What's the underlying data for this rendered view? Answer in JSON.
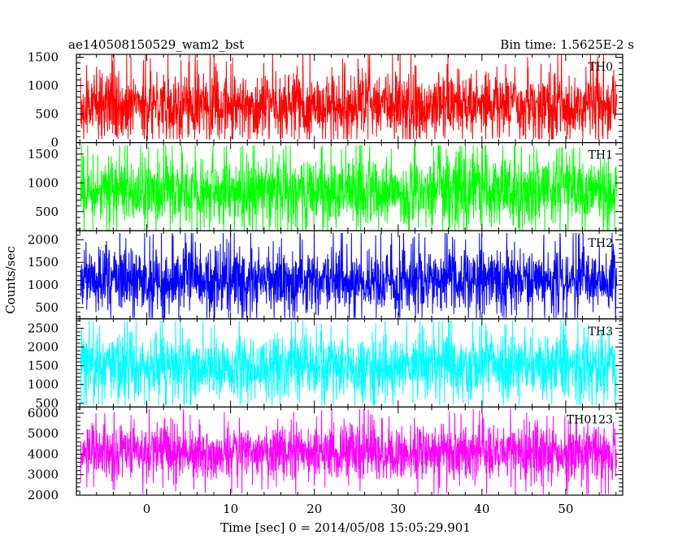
{
  "header": {
    "left_title": "ae140508150529_wam2_bst",
    "right_title": "Bin time: 1.5625E-2 s"
  },
  "chart_data": {
    "type": "line",
    "xlabel": "Time [sec] 0 = 2014/05/08 15:05:29.901",
    "ylabel": "Counts/sec",
    "xlim": [
      -8.4,
      56.8
    ],
    "x_range": [
      -7.9,
      56.1
    ],
    "x_ticks_labeled": [
      0,
      10,
      20,
      30,
      40,
      50
    ],
    "x_minor_step": 2,
    "panels": [
      {
        "name": "TH0",
        "color": "#ff0000",
        "ylim": [
          0,
          1550
        ],
        "y_ticks": [
          0,
          500,
          1000,
          1500
        ],
        "y_minor_step": 100,
        "center": 650,
        "spread": 310,
        "min": 60,
        "max": 1550
      },
      {
        "name": "TH1",
        "color": "#00ff00",
        "ylim": [
          170,
          1700
        ],
        "y_ticks": [
          500,
          1000,
          1500
        ],
        "y_minor_step": 100,
        "center": 850,
        "spread": 330,
        "min": 180,
        "max": 1650
      },
      {
        "name": "TH2",
        "color": "#0000ff",
        "ylim": [
          250,
          2200
        ],
        "y_ticks": [
          500,
          1000,
          1500,
          2000
        ],
        "y_minor_step": 100,
        "center": 1100,
        "spread": 380,
        "min": 270,
        "max": 2150
      },
      {
        "name": "TH3",
        "color": "#00ffff",
        "ylim": [
          400,
          2750
        ],
        "y_ticks": [
          500,
          1000,
          1500,
          2000,
          2500
        ],
        "y_minor_step": 100,
        "center": 1500,
        "spread": 460,
        "min": 450,
        "max": 2700
      },
      {
        "name": "TH0123",
        "color": "#ff00ff",
        "ylim": [
          2000,
          6300
        ],
        "y_ticks": [
          2000,
          3000,
          4000,
          5000,
          6000
        ],
        "y_minor_step": 200,
        "center": 4050,
        "spread": 720,
        "min": 2050,
        "max": 6200
      }
    ]
  }
}
